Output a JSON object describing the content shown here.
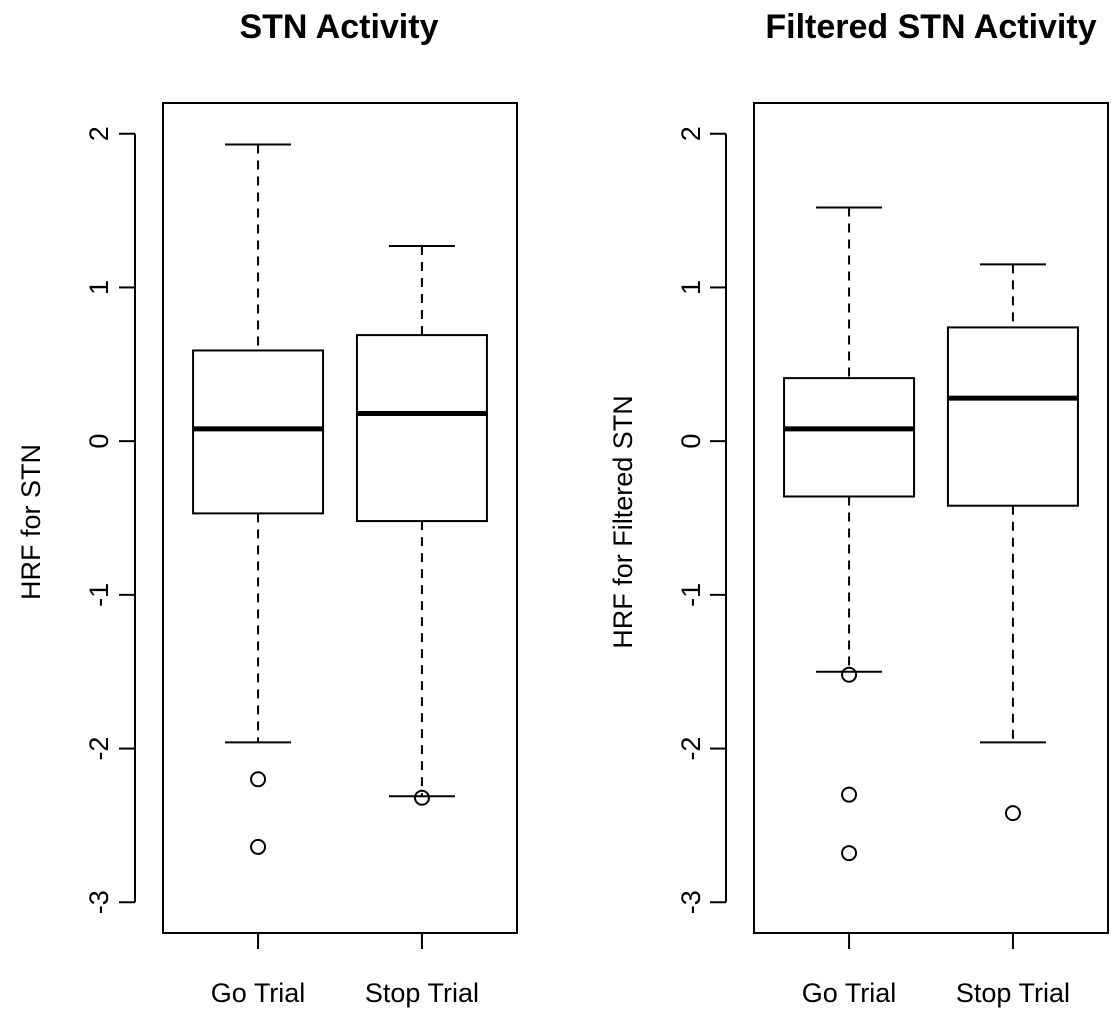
{
  "chart_data": [
    {
      "type": "box",
      "title": "STN Activity",
      "xlabel": "",
      "ylabel": "HRF for STN",
      "ylim": [
        -3.2,
        2.2
      ],
      "yticks": [
        -3,
        -2,
        -1,
        0,
        1,
        2
      ],
      "ytick_labels": [
        "-3",
        "-2",
        "-1",
        "0",
        "1",
        "2"
      ],
      "categories": [
        "Go Trial",
        "Stop Trial"
      ],
      "boxes": [
        {
          "category": "Go Trial",
          "whisker_low": -1.96,
          "q1": -0.47,
          "median": 0.08,
          "q3": 0.59,
          "whisker_high": 1.93,
          "outliers": [
            -2.2,
            -2.64
          ]
        },
        {
          "category": "Stop Trial",
          "whisker_low": -2.31,
          "q1": -0.52,
          "median": 0.18,
          "q3": 0.69,
          "whisker_high": 1.27,
          "outliers": [
            -2.32
          ]
        }
      ],
      "grid": false,
      "legend": "none"
    },
    {
      "type": "box",
      "title": "Filtered STN Activity",
      "xlabel": "",
      "ylabel": "HRF for Filtered STN",
      "ylim": [
        -3.2,
        2.2
      ],
      "yticks": [
        -3,
        -2,
        -1,
        0,
        1,
        2
      ],
      "ytick_labels": [
        "-3",
        "-2",
        "-1",
        "0",
        "1",
        "2"
      ],
      "categories": [
        "Go Trial",
        "Stop Trial"
      ],
      "boxes": [
        {
          "category": "Go Trial",
          "whisker_low": -1.5,
          "q1": -0.36,
          "median": 0.08,
          "q3": 0.41,
          "whisker_high": 1.52,
          "outliers": [
            -1.52,
            -2.3,
            -2.68
          ]
        },
        {
          "category": "Stop Trial",
          "whisker_low": -1.96,
          "q1": -0.42,
          "median": 0.28,
          "q3": 0.74,
          "whisker_high": 1.15,
          "outliers": [
            -2.42
          ]
        }
      ],
      "grid": false,
      "legend": "none"
    }
  ],
  "colors": {
    "stroke": "#000000",
    "background": "#ffffff",
    "box_fill": "#ffffff"
  }
}
